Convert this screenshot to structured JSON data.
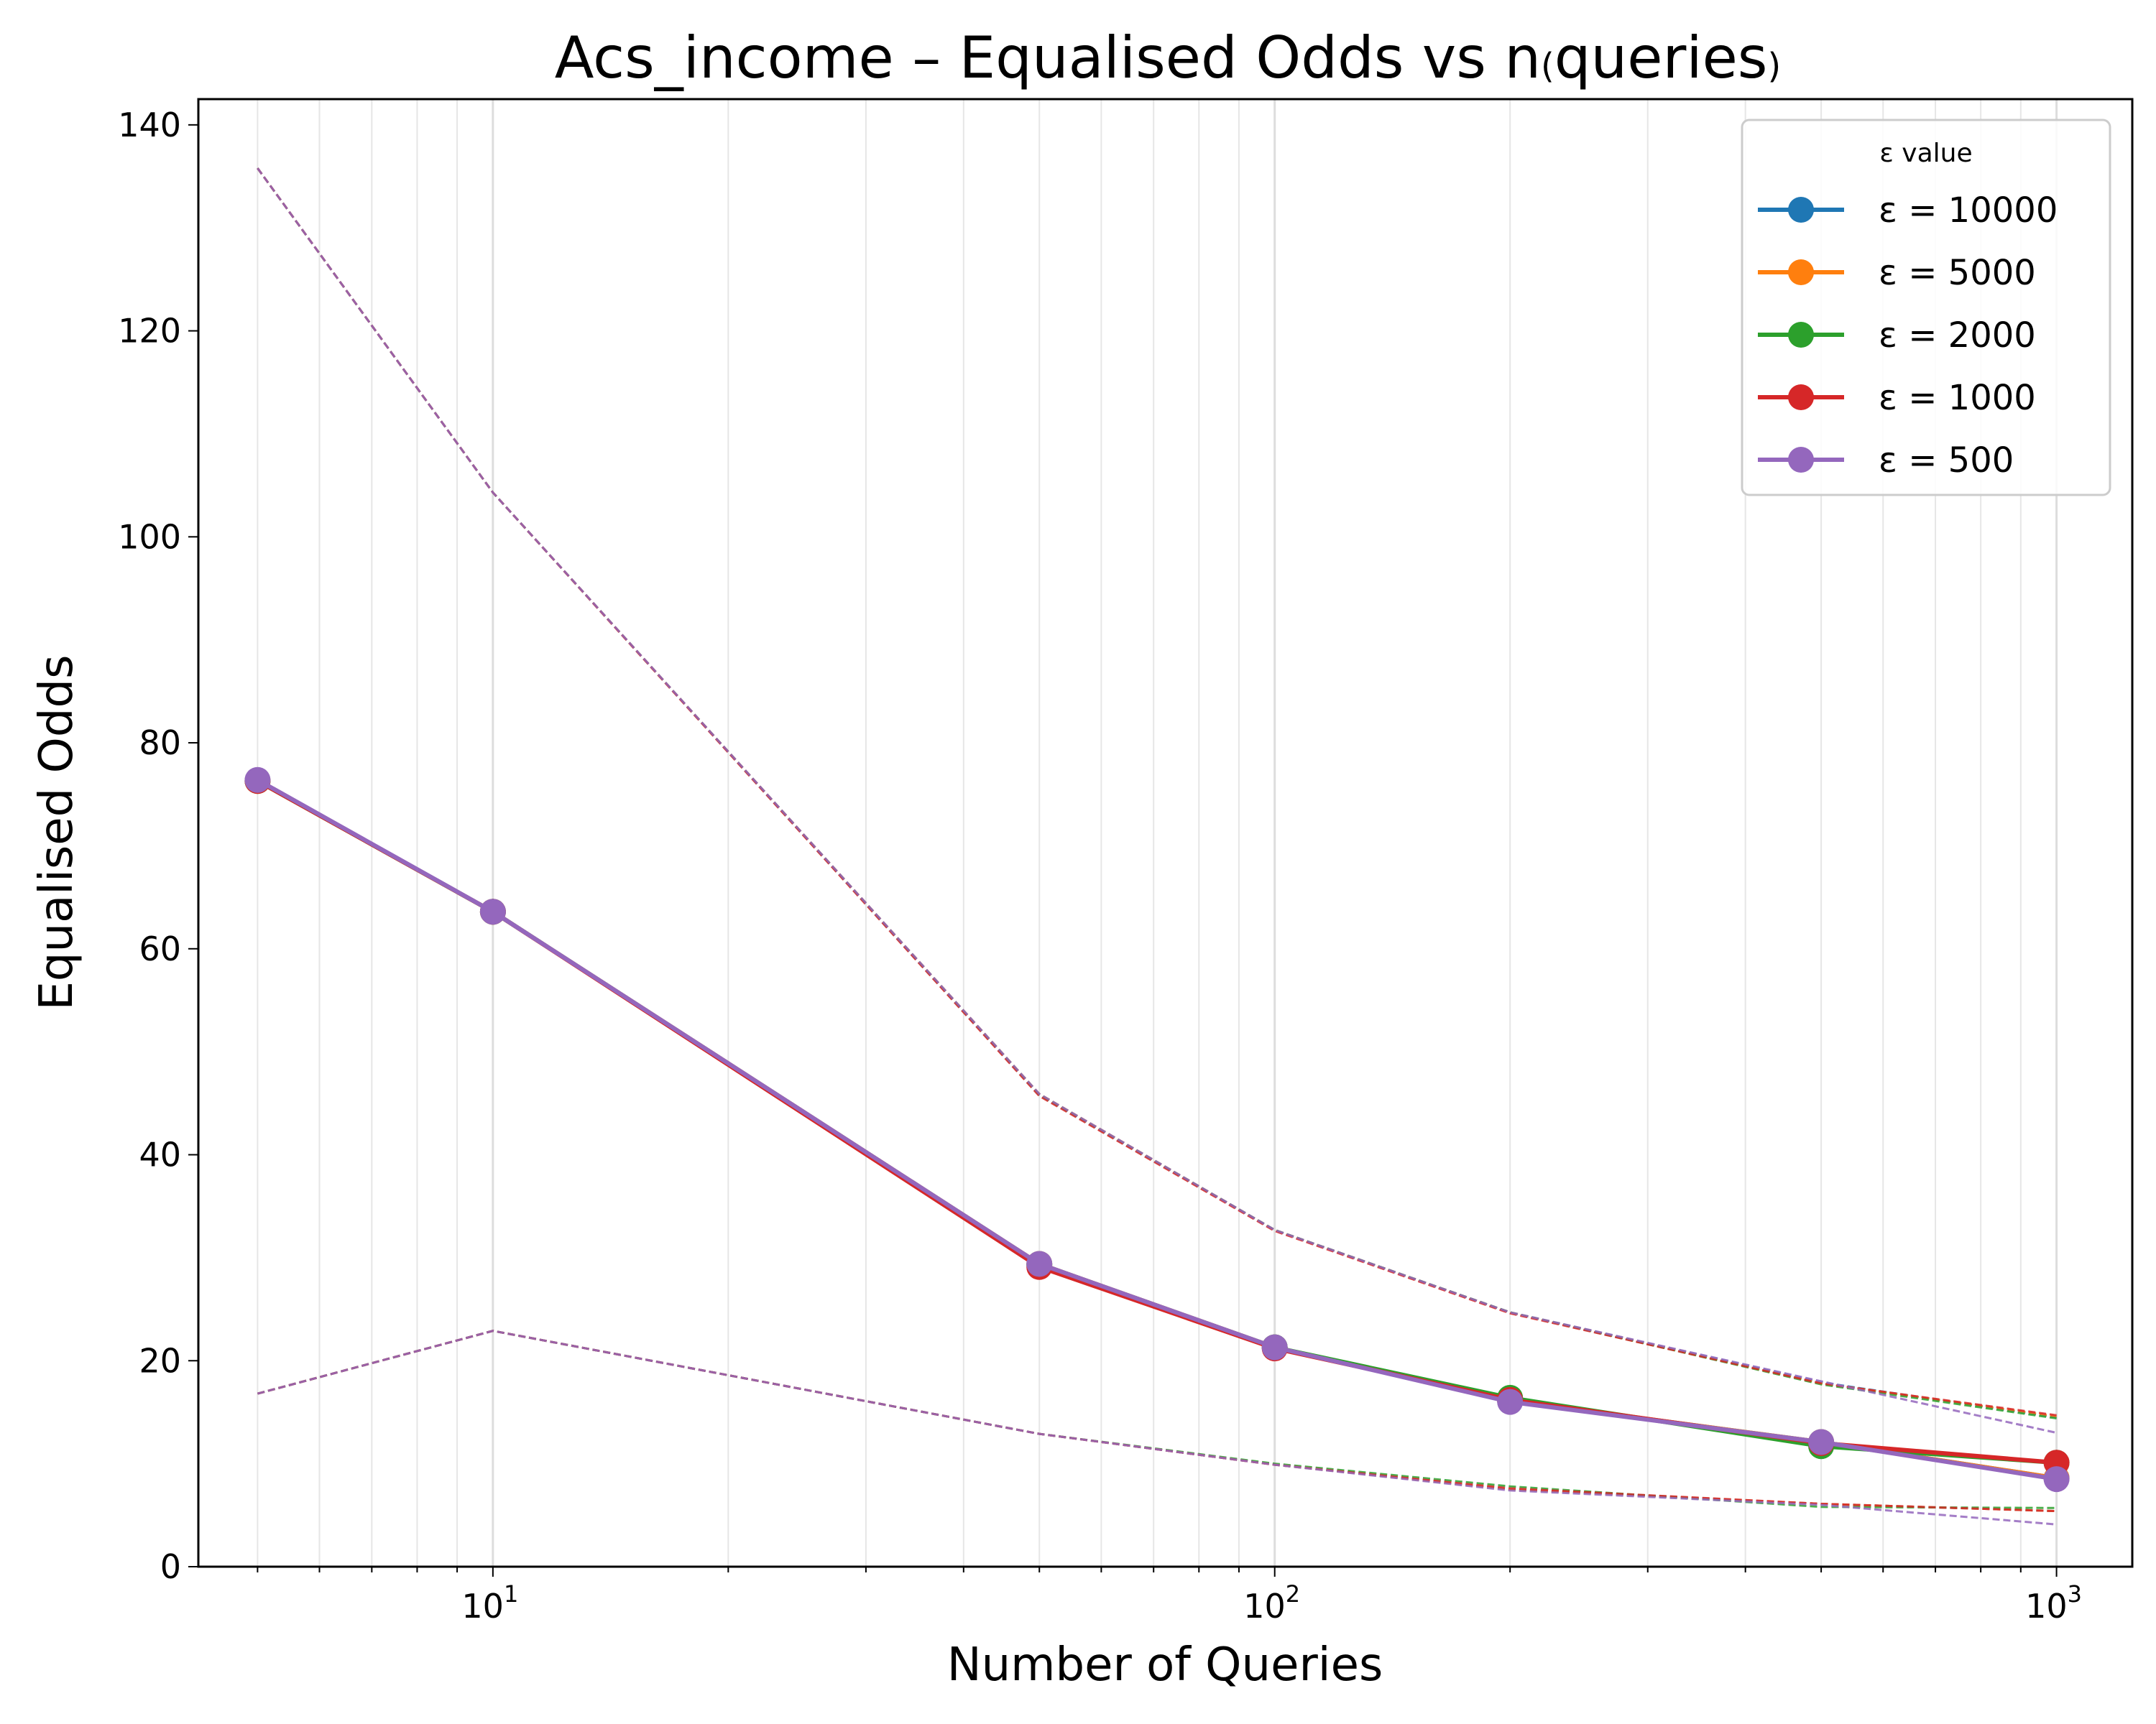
{
  "chart_data": {
    "type": "line",
    "title": "Acs_income – Equalised Odds vs n(queries)",
    "title_parts": {
      "main": "Acs_income – Equalised Odds vs n",
      "paren_open": "(",
      "sub": "queries",
      "paren_close": ")"
    },
    "xlabel": "Number of Queries",
    "ylabel": "Equalised Odds",
    "x_scale": "log",
    "xlim": [
      4.2,
      1250
    ],
    "ylim": [
      0,
      142.5
    ],
    "x_ticks": [
      {
        "value": 10,
        "base": "10",
        "exp": "1"
      },
      {
        "value": 100,
        "base": "10",
        "exp": "2"
      },
      {
        "value": 1000,
        "base": "10",
        "exp": "3"
      }
    ],
    "y_ticks": [
      0,
      20,
      40,
      60,
      80,
      100,
      120,
      140
    ],
    "grid": "vertical minor and major gridlines on x axis",
    "legend": {
      "title": "ε value",
      "placement": "top-right"
    },
    "x": [
      5,
      10,
      50,
      100,
      200,
      500,
      1000
    ],
    "series": [
      {
        "name": "ε = 10000",
        "color": "#1f77b4",
        "values": [
          76.3,
          63.6,
          29.4,
          21.3,
          16.1,
          12.1,
          8.6
        ],
        "upper": [
          135.8,
          104.3,
          45.9,
          32.7,
          24.7,
          17.9,
          14.5
        ],
        "lower": [
          16.8,
          22.9,
          12.9,
          9.9,
          7.5,
          6.1,
          5.4
        ]
      },
      {
        "name": "ε = 5000",
        "color": "#ff7f0e",
        "values": [
          76.3,
          63.6,
          29.4,
          21.3,
          16.1,
          12.1,
          8.6
        ],
        "upper": [
          135.8,
          104.3,
          45.9,
          32.7,
          24.7,
          17.8,
          14.6
        ],
        "lower": [
          16.8,
          22.9,
          12.9,
          9.9,
          7.5,
          6.1,
          5.4
        ]
      },
      {
        "name": "ε = 2000",
        "color": "#2ca02c",
        "values": [
          76.3,
          63.6,
          29.3,
          21.3,
          16.4,
          11.7,
          10.1
        ],
        "upper": [
          135.8,
          104.3,
          45.8,
          32.7,
          24.7,
          17.7,
          14.4
        ],
        "lower": [
          16.8,
          22.9,
          12.9,
          10.0,
          7.8,
          5.8,
          5.7
        ]
      },
      {
        "name": "ε = 1000",
        "color": "#d62728",
        "values": [
          76.3,
          63.6,
          29.1,
          21.2,
          16.2,
          12.0,
          10.1
        ],
        "upper": [
          135.8,
          104.3,
          45.7,
          32.6,
          24.6,
          17.8,
          14.7
        ],
        "lower": [
          16.8,
          22.9,
          12.9,
          9.9,
          7.6,
          6.1,
          5.4
        ]
      },
      {
        "name": "ε = 500",
        "color": "#9467bd",
        "values": [
          76.4,
          63.6,
          29.4,
          21.3,
          16.0,
          12.1,
          8.5
        ],
        "upper": [
          135.8,
          104.3,
          45.9,
          32.7,
          24.7,
          18.0,
          13.0
        ],
        "lower": [
          16.8,
          22.9,
          12.9,
          9.9,
          7.4,
          6.0,
          4.1
        ]
      }
    ]
  }
}
